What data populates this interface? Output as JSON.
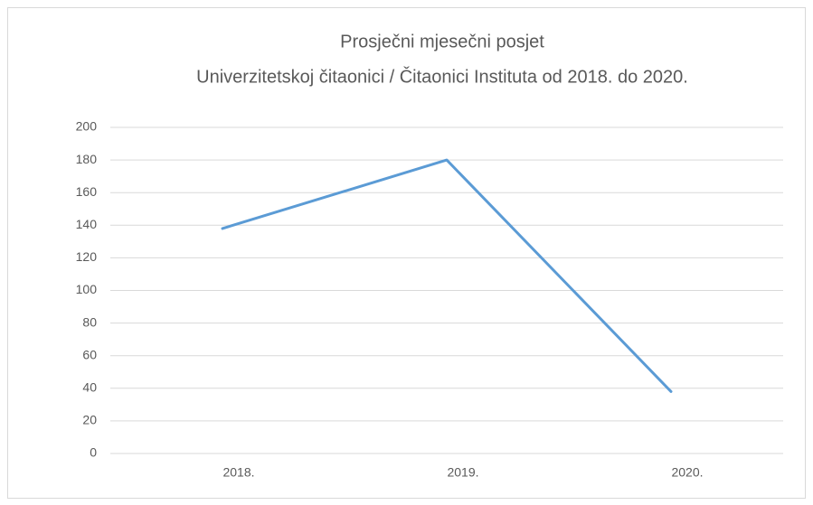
{
  "chart_data": {
    "type": "line",
    "title": [
      "Prosječni mjesečni posjet",
      "Univerzitetskoj čitaonici / Čitaonici Instituta od 2018. do 2020."
    ],
    "categories": [
      "2018.",
      "2019.",
      "2020."
    ],
    "values": [
      138,
      180,
      38
    ],
    "color": "#5b9bd5",
    "ylim": [
      0,
      200
    ],
    "yticks": [
      0,
      20,
      40,
      60,
      80,
      100,
      120,
      140,
      160,
      180,
      200
    ],
    "grid": true
  }
}
